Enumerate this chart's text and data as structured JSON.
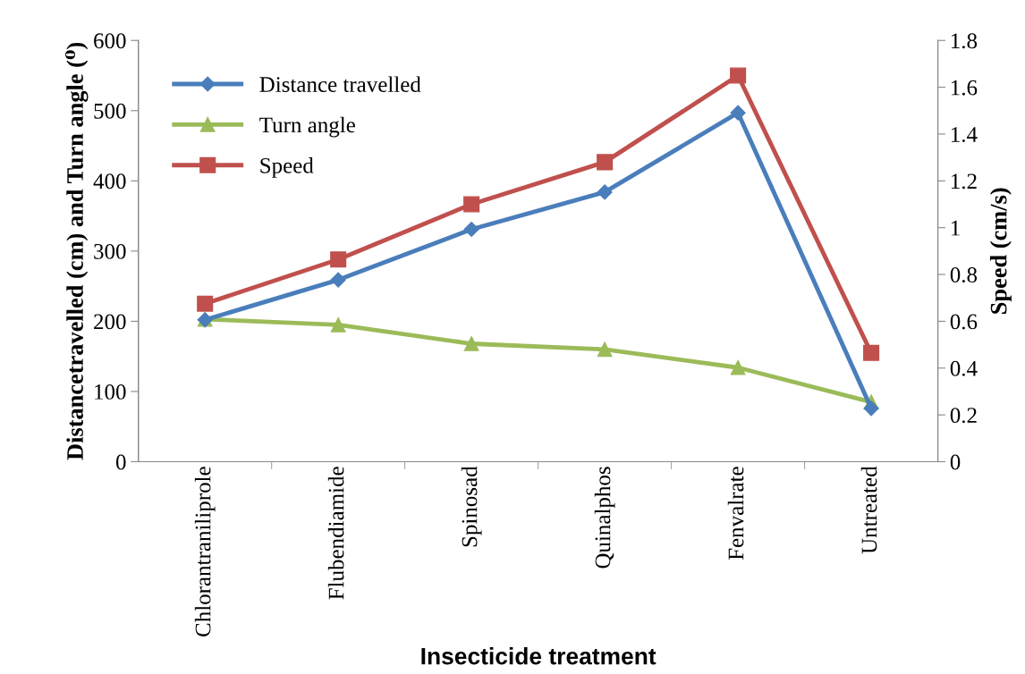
{
  "chart_data": {
    "type": "line",
    "xlabel": "Insecticide treatment",
    "ylabel": "Distancetravelled (cm) and Turn angle (⁰)",
    "y2label": "Speed (cm/s)",
    "categories": [
      "Chlorantraniliprole",
      "Flubendiamide",
      "Spinosad",
      "Quinalphos",
      "Fenvalrate",
      "Untreated"
    ],
    "series": [
      {
        "name": "Distance travelled",
        "color": "#4a7ebb",
        "marker": "diamond",
        "values": [
          202,
          259,
          331,
          384,
          497,
          76
        ]
      },
      {
        "name": "Turn angle",
        "color": "#9bbb59",
        "marker": "triangle",
        "values": [
          203,
          195,
          168,
          160,
          134,
          85
        ]
      },
      {
        "name": "Speed",
        "color": "#c0504d",
        "marker": "square",
        "axis": "y2",
        "values": [
          0.675,
          0.864,
          1.1,
          1.28,
          1.65,
          0.465
        ]
      }
    ],
    "ylim": [
      0,
      600
    ],
    "yticks": [
      0,
      100,
      200,
      300,
      400,
      500,
      600
    ],
    "y2lim": [
      0,
      1.8
    ],
    "y2ticks": [
      {
        "value": 0,
        "label": "0"
      },
      {
        "value": 0.2,
        "label": "0.2"
      },
      {
        "value": 0.4,
        "label": "0.4"
      },
      {
        "value": 0.6,
        "label": "0.6"
      },
      {
        "value": 0.8,
        "label": "0.8"
      },
      {
        "value": 1,
        "label": "1"
      },
      {
        "value": 1.2,
        "label": "1.2"
      },
      {
        "value": 1.4,
        "label": "1.4"
      },
      {
        "value": 1.6,
        "label": "1.6"
      },
      {
        "value": 1.8,
        "label": "1.8"
      }
    ],
    "grid": false,
    "legend": "top left",
    "line_style": "solid"
  }
}
